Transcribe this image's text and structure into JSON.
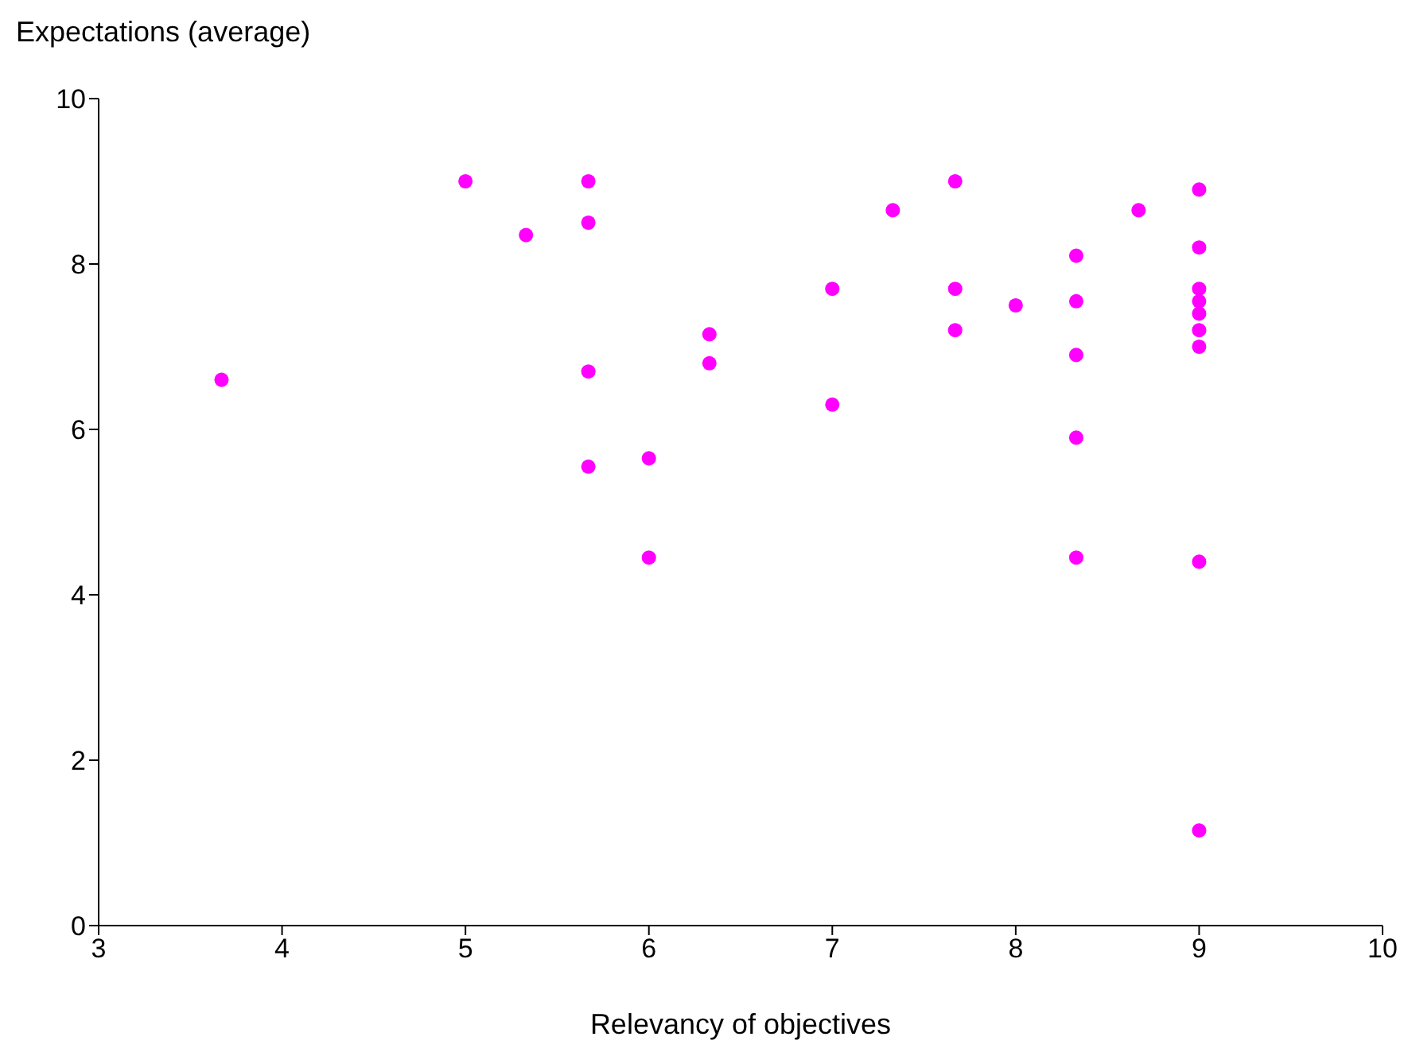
{
  "chart_data": {
    "type": "scatter",
    "xlabel": "Relevancy of objectives",
    "ylabel": "Expectations (average)",
    "x": [
      3.67,
      5.0,
      5.33,
      5.67,
      5.67,
      5.67,
      5.67,
      6.0,
      6.0,
      6.33,
      6.33,
      7.0,
      7.0,
      7.33,
      7.67,
      7.67,
      7.67,
      8.0,
      8.33,
      8.33,
      8.33,
      8.33,
      8.33,
      8.67,
      9.0,
      9.0,
      9.0,
      9.0,
      9.0,
      9.0,
      9.0,
      9.0,
      9.0
    ],
    "series": [
      {
        "color": "#ff00ff",
        "values": [
          6.6,
          9.0,
          8.35,
          9.0,
          8.5,
          6.7,
          5.55,
          5.65,
          4.45,
          7.15,
          6.8,
          7.7,
          6.3,
          8.65,
          9.0,
          7.7,
          7.2,
          7.5,
          8.1,
          7.55,
          6.9,
          5.9,
          4.45,
          8.65,
          8.9,
          8.2,
          7.7,
          7.55,
          7.4,
          7.2,
          7.0,
          4.4,
          1.15
        ]
      }
    ],
    "xlim": [
      3,
      10
    ],
    "xticks": [
      3,
      4,
      5,
      6,
      7,
      8,
      9,
      10
    ],
    "ylim": [
      0,
      10
    ],
    "yticks": [
      0,
      2,
      4,
      6,
      8,
      10
    ],
    "grid": false,
    "marker": "circle"
  }
}
